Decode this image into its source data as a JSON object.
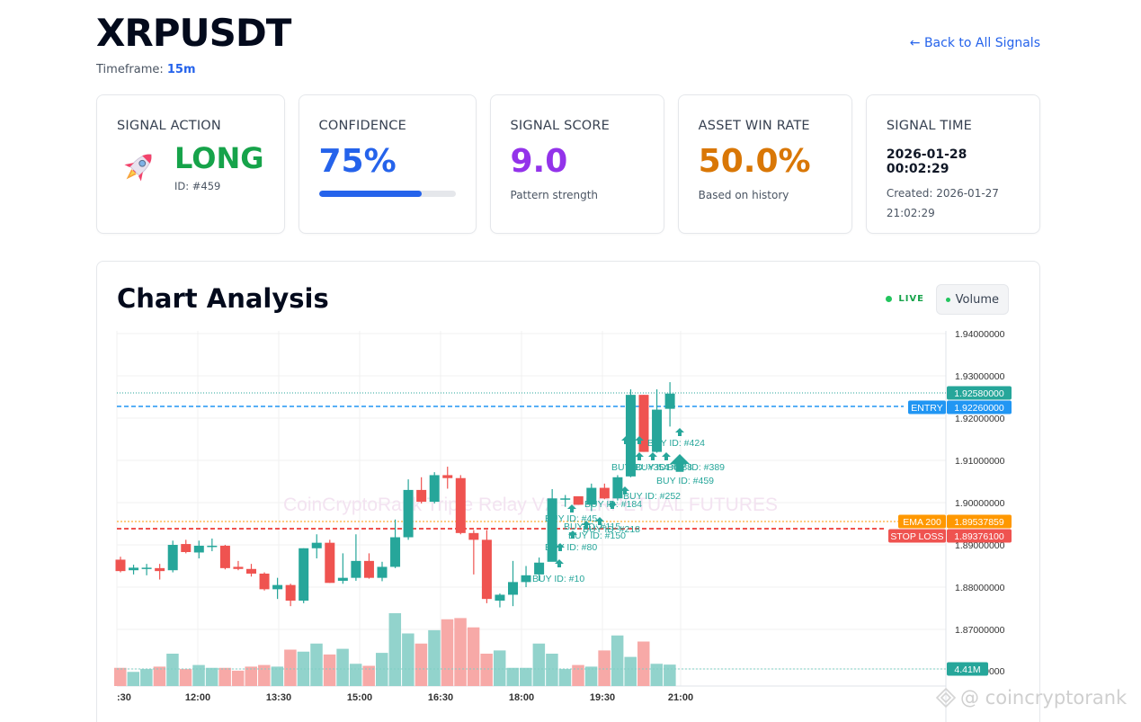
{
  "header": {
    "symbol": "XRPUSDT",
    "timeframe_label": "Timeframe: ",
    "timeframe_value": "15m",
    "back_link": "← Back to All Signals"
  },
  "cards": {
    "signal_action": {
      "label": "SIGNAL ACTION",
      "value": "LONG",
      "sub": "ID: #459",
      "icon": "rocket-icon"
    },
    "confidence": {
      "label": "CONFIDENCE",
      "value": "75%",
      "progress": 75
    },
    "signal_score": {
      "label": "SIGNAL SCORE",
      "value": "9.0",
      "sub": "Pattern strength"
    },
    "win_rate": {
      "label": "ASSET WIN RATE",
      "value": "50.0%",
      "sub": "Based on history"
    },
    "signal_time": {
      "label": "SIGNAL TIME",
      "value": "2026-01-28 00:02:29",
      "sub_line1": "Created: 2026-01-27",
      "sub_line2": "21:02:29"
    }
  },
  "chart_section": {
    "title": "Chart Analysis",
    "live_label": "LIVE",
    "volume_button": "Volume",
    "watermark_text": "CoinCryptoRank Triple Relay V2 - PERPETUAL FUTURES"
  },
  "colors": {
    "up": "#26a69a",
    "down": "#ef5350",
    "entry": "#2196f3",
    "ema": "#ff9800",
    "stop": "#ef5350",
    "accent_blue": "#2563eb",
    "green": "#16a34a",
    "purple": "#9333ea",
    "orange": "#d97706"
  },
  "chart_data": {
    "type": "candlestick",
    "title": "Chart Analysis",
    "symbol": "XRPUSDT",
    "interval": "15m",
    "price_axis": {
      "ticks": [
        "1.94000000",
        "1.93000000",
        "1.92000000",
        "1.91000000",
        "1.90000000",
        "1.89000000",
        "1.88000000",
        "1.87000000"
      ],
      "range": [
        1.864,
        1.942
      ]
    },
    "time_axis": {
      "ticks": [
        ":30",
        "12:00",
        "13:30",
        "15:00",
        "16:30",
        "18:00",
        "19:30",
        "21:00"
      ]
    },
    "price_labels": [
      {
        "name": "last",
        "label": "",
        "value": "1.92580000",
        "color": "#26a69a"
      },
      {
        "name": "entry",
        "label": "ENTRY",
        "value": "1.92260000",
        "color": "#2196f3"
      },
      {
        "name": "ema200",
        "label": "EMA 200",
        "value": "1.89537859",
        "color": "#ff9800"
      },
      {
        "name": "stop_loss",
        "label": "STOP LOSS",
        "value": "1.89376100",
        "color": "#ef5350"
      }
    ],
    "volume_label": "4.41M",
    "candles": [
      {
        "o": 1.8865,
        "h": 1.8872,
        "l": 1.8835,
        "c": 1.8838
      },
      {
        "o": 1.884,
        "h": 1.8853,
        "l": 1.883,
        "c": 1.8846
      },
      {
        "o": 1.8846,
        "h": 1.8855,
        "l": 1.8828,
        "c": 1.8846
      },
      {
        "o": 1.8845,
        "h": 1.8855,
        "l": 1.8818,
        "c": 1.8838
      },
      {
        "o": 1.884,
        "h": 1.891,
        "l": 1.8835,
        "c": 1.89
      },
      {
        "o": 1.8902,
        "h": 1.8912,
        "l": 1.888,
        "c": 1.8883
      },
      {
        "o": 1.8882,
        "h": 1.891,
        "l": 1.8868,
        "c": 1.8898
      },
      {
        "o": 1.8898,
        "h": 1.8915,
        "l": 1.8885,
        "c": 1.8898
      },
      {
        "o": 1.8898,
        "h": 1.89,
        "l": 1.8842,
        "c": 1.8845
      },
      {
        "o": 1.8848,
        "h": 1.8862,
        "l": 1.884,
        "c": 1.8843
      },
      {
        "o": 1.8843,
        "h": 1.8855,
        "l": 1.8825,
        "c": 1.8832
      },
      {
        "o": 1.8832,
        "h": 1.8835,
        "l": 1.8792,
        "c": 1.8795
      },
      {
        "o": 1.8795,
        "h": 1.8822,
        "l": 1.8772,
        "c": 1.8805
      },
      {
        "o": 1.8805,
        "h": 1.8808,
        "l": 1.8755,
        "c": 1.8768
      },
      {
        "o": 1.8768,
        "h": 1.8892,
        "l": 1.8762,
        "c": 1.8892
      },
      {
        "o": 1.8892,
        "h": 1.8925,
        "l": 1.8868,
        "c": 1.8905
      },
      {
        "o": 1.8905,
        "h": 1.8912,
        "l": 1.881,
        "c": 1.881
      },
      {
        "o": 1.8815,
        "h": 1.888,
        "l": 1.8808,
        "c": 1.8822
      },
      {
        "o": 1.8822,
        "h": 1.8925,
        "l": 1.8815,
        "c": 1.8862
      },
      {
        "o": 1.8862,
        "h": 1.888,
        "l": 1.882,
        "c": 1.8822
      },
      {
        "o": 1.8822,
        "h": 1.886,
        "l": 1.8814,
        "c": 1.8848
      },
      {
        "o": 1.8848,
        "h": 1.896,
        "l": 1.8845,
        "c": 1.8918
      },
      {
        "o": 1.8918,
        "h": 1.9055,
        "l": 1.8912,
        "c": 1.903
      },
      {
        "o": 1.903,
        "h": 1.906,
        "l": 1.8998,
        "c": 1.9002
      },
      {
        "o": 1.9002,
        "h": 1.9072,
        "l": 1.8998,
        "c": 1.9065
      },
      {
        "o": 1.9065,
        "h": 1.9085,
        "l": 1.9033,
        "c": 1.9058
      },
      {
        "o": 1.9058,
        "h": 1.9065,
        "l": 1.8925,
        "c": 1.8928
      },
      {
        "o": 1.8928,
        "h": 1.8935,
        "l": 1.883,
        "c": 1.8912
      },
      {
        "o": 1.8912,
        "h": 1.8935,
        "l": 1.8762,
        "c": 1.8772
      },
      {
        "o": 1.8768,
        "h": 1.8785,
        "l": 1.8752,
        "c": 1.8782
      },
      {
        "o": 1.8782,
        "h": 1.8862,
        "l": 1.8755,
        "c": 1.8812
      },
      {
        "o": 1.8812,
        "h": 1.885,
        "l": 1.88,
        "c": 1.8828
      },
      {
        "o": 1.883,
        "h": 1.887,
        "l": 1.8815,
        "c": 1.8858
      },
      {
        "o": 1.886,
        "h": 1.9032,
        "l": 1.8865,
        "c": 1.901
      },
      {
        "o": 1.901,
        "h": 1.9018,
        "l": 1.899,
        "c": 1.901
      },
      {
        "o": 1.9015,
        "h": 1.901,
        "l": 1.8995,
        "c": 1.8995
      },
      {
        "o": 1.8995,
        "h": 1.9045,
        "l": 1.898,
        "c": 1.9035
      },
      {
        "o": 1.9035,
        "h": 1.9045,
        "l": 1.9008,
        "c": 1.901
      },
      {
        "o": 1.901,
        "h": 1.9065,
        "l": 1.9005,
        "c": 1.906
      },
      {
        "o": 1.9062,
        "h": 1.9268,
        "l": 1.906,
        "c": 1.9255
      },
      {
        "o": 1.9255,
        "h": 1.9255,
        "l": 1.912,
        "c": 1.912
      },
      {
        "o": 1.912,
        "h": 1.9268,
        "l": 1.9118,
        "c": 1.922
      },
      {
        "o": 1.9222,
        "h": 1.9285,
        "l": 1.918,
        "c": 1.9258
      }
    ],
    "volumes": [
      0.45,
      0.35,
      0.42,
      0.48,
      0.8,
      0.42,
      0.52,
      0.45,
      0.45,
      0.38,
      0.48,
      0.52,
      0.48,
      0.9,
      0.85,
      1.05,
      0.78,
      0.92,
      0.55,
      0.5,
      0.82,
      1.8,
      1.3,
      1.05,
      1.38,
      1.65,
      1.68,
      1.45,
      0.8,
      0.88,
      0.45,
      0.45,
      1.05,
      0.8,
      0.42,
      0.52,
      0.48,
      0.88,
      1.25,
      0.72,
      1.1,
      0.55,
      0.53
    ],
    "markers": [
      {
        "text": "BUY ID: #10",
        "idx": 31
      },
      {
        "text": "BUY ID: #80",
        "idx": 32
      },
      {
        "text": "BUY ID: #150",
        "idx": 33
      },
      {
        "text": "BUY ID: #45",
        "idx": 32
      },
      {
        "text": "BUY ID: #115",
        "idx": 33
      },
      {
        "text": "BUY ID: #218",
        "idx": 34
      },
      {
        "text": "BUY ID: #184",
        "idx": 35
      },
      {
        "text": "BUY ID: #252",
        "idx": 36
      },
      {
        "text": "BUY ID: #354",
        "idx": 37
      },
      {
        "text": "BUY ID: #288",
        "idx": 38
      },
      {
        "text": "BUY ID: #389",
        "idx": 39
      },
      {
        "text": "BUY ID: #424",
        "idx": 40
      },
      {
        "text": "BUY ID: #459",
        "idx": 42
      }
    ]
  },
  "footer": {
    "watermark": "@ coincryptorank"
  }
}
